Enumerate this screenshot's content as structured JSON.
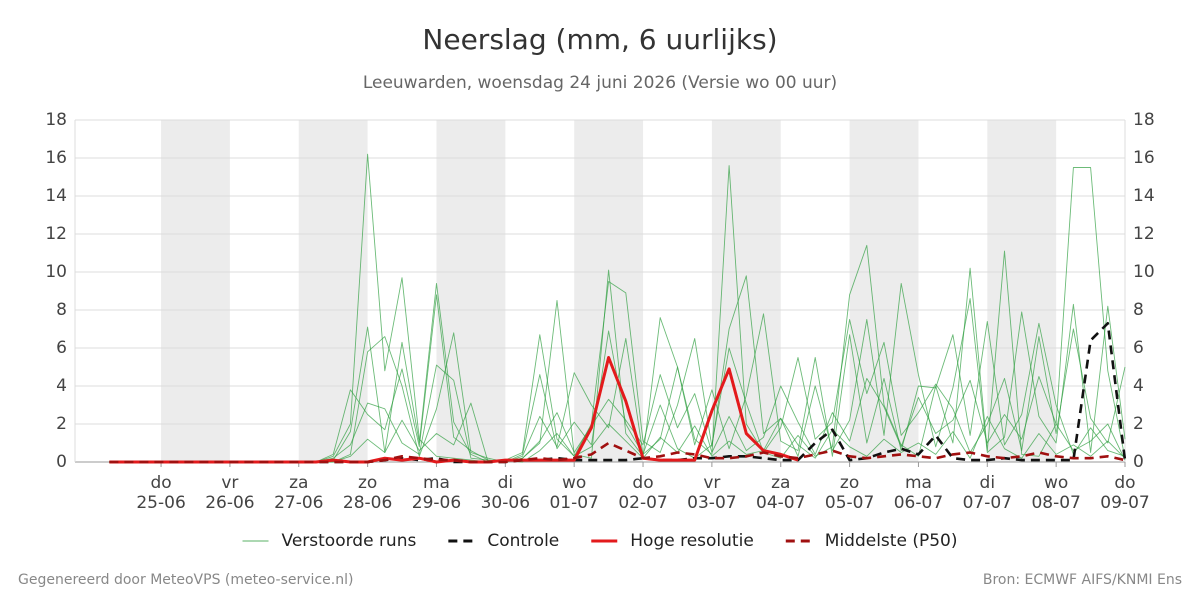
{
  "chart_data": {
    "type": "line",
    "title": "Neerslag (mm, 6 uurlijks)",
    "subtitle": "Leeuwarden, woensdag 24 juni 2026 (Versie wo 00 uur)",
    "credit": "Gegenereerd door MeteoVPS (meteo-service.nl)",
    "source": "Bron: ECMWF AIFS/KNMI Ens",
    "x": [
      "24-06 06:00",
      "24-06 12:00",
      "24-06 18:00",
      "25-06 00:00",
      "25-06 06:00",
      "25-06 12:00",
      "25-06 18:00",
      "26-06 00:00",
      "26-06 06:00",
      "26-06 12:00",
      "26-06 18:00",
      "27-06 00:00",
      "27-06 06:00",
      "27-06 12:00",
      "27-06 18:00",
      "28-06 00:00",
      "28-06 06:00",
      "28-06 12:00",
      "28-06 18:00",
      "29-06 00:00",
      "29-06 06:00",
      "29-06 12:00",
      "29-06 18:00",
      "30-06 00:00",
      "30-06 06:00",
      "30-06 12:00",
      "30-06 18:00",
      "01-07 00:00",
      "01-07 06:00",
      "01-07 12:00",
      "01-07 18:00",
      "02-07 00:00",
      "02-07 06:00",
      "02-07 12:00",
      "02-07 18:00",
      "03-07 00:00",
      "03-07 06:00",
      "03-07 12:00",
      "03-07 18:00",
      "04-07 00:00",
      "04-07 06:00",
      "04-07 12:00",
      "04-07 18:00",
      "05-07 00:00",
      "05-07 06:00",
      "05-07 12:00",
      "05-07 18:00",
      "06-07 00:00",
      "06-07 06:00",
      "06-07 12:00",
      "06-07 18:00",
      "07-07 00:00",
      "07-07 06:00",
      "07-07 12:00",
      "07-07 18:00",
      "08-07 00:00",
      "08-07 06:00",
      "08-07 12:00",
      "08-07 18:00",
      "09-07 00:00"
    ],
    "xlim": [
      "23-06 18:00",
      "09-07 00:00"
    ],
    "xticks": [
      {
        "value": "25-06 00:00",
        "label": [
          "do",
          "25-06"
        ]
      },
      {
        "value": "26-06 00:00",
        "label": [
          "vr",
          "26-06"
        ]
      },
      {
        "value": "27-06 00:00",
        "label": [
          "za",
          "27-06"
        ]
      },
      {
        "value": "28-06 00:00",
        "label": [
          "zo",
          "28-06"
        ]
      },
      {
        "value": "29-06 00:00",
        "label": [
          "ma",
          "29-06"
        ]
      },
      {
        "value": "30-06 00:00",
        "label": [
          "di",
          "30-06"
        ]
      },
      {
        "value": "01-07 00:00",
        "label": [
          "wo",
          "01-07"
        ]
      },
      {
        "value": "02-07 00:00",
        "label": [
          "do",
          "02-07"
        ]
      },
      {
        "value": "03-07 00:00",
        "label": [
          "vr",
          "03-07"
        ]
      },
      {
        "value": "04-07 00:00",
        "label": [
          "za",
          "04-07"
        ]
      },
      {
        "value": "05-07 00:00",
        "label": [
          "zo",
          "05-07"
        ]
      },
      {
        "value": "06-07 00:00",
        "label": [
          "ma",
          "06-07"
        ]
      },
      {
        "value": "07-07 00:00",
        "label": [
          "di",
          "07-07"
        ]
      },
      {
        "value": "08-07 00:00",
        "label": [
          "wo",
          "08-07"
        ]
      },
      {
        "value": "09-07 00:00",
        "label": [
          "do",
          "09-07"
        ]
      }
    ],
    "ylim": [
      0,
      18
    ],
    "yticks": [
      0,
      2,
      4,
      6,
      8,
      10,
      12,
      14,
      16,
      18
    ],
    "grid": true,
    "right_axis": true,
    "legend": "bottom",
    "series": [
      {
        "name": "Verstoorde runs",
        "color": "#2e9e3e",
        "runs": [
          [
            0,
            0,
            0,
            0,
            0,
            0,
            0,
            0,
            0,
            0,
            0,
            0,
            0,
            0.3,
            2.0,
            16.2,
            4.8,
            9.7,
            1.2,
            0.3,
            0.2,
            0.1,
            0,
            0,
            0.2,
            1.0,
            8.5,
            0.4,
            0.2,
            10.1,
            1.5,
            0.3,
            7.6,
            5.0,
            1.2,
            0.4,
            15.6,
            2.0,
            0.5,
            0.2,
            1.4,
            0.3,
            0.8,
            8.8,
            11.4,
            3.0,
            0.9,
            0.3,
            4.0,
            1.0,
            10.2,
            0.6,
            11.1,
            0.4,
            0.3,
            2.0,
            15.5,
            15.5,
            4.8,
            0.2
          ],
          [
            0,
            0,
            0,
            0,
            0,
            0,
            0,
            0,
            0,
            0,
            0,
            0,
            0,
            0.1,
            1.6,
            7.1,
            0.5,
            6.3,
            1.0,
            9.4,
            2.1,
            0.4,
            0,
            0.1,
            0.5,
            6.7,
            1.2,
            0.3,
            2.0,
            9.5,
            8.9,
            1.1,
            0.5,
            3.0,
            6.5,
            0.8,
            7.0,
            9.8,
            1.5,
            2.3,
            0.3,
            4.0,
            0.6,
            2.2,
            7.5,
            1.4,
            9.4,
            4.6,
            0.8,
            3.9,
            8.6,
            0.5,
            1.3,
            7.9,
            2.4,
            1.0,
            8.3,
            0.5,
            8.2,
            1.2
          ],
          [
            0,
            0,
            0,
            0,
            0,
            0,
            0,
            0,
            0,
            0,
            0,
            0,
            0,
            0,
            0.4,
            5.8,
            6.6,
            4.0,
            0.3,
            2.8,
            6.8,
            0.5,
            0.2,
            0,
            0.3,
            2.4,
            0.8,
            4.7,
            3.0,
            1.8,
            6.5,
            0.4,
            1.2,
            5.0,
            0.9,
            3.8,
            0.7,
            3.5,
            7.8,
            1.1,
            0.6,
            5.5,
            0.3,
            6.7,
            1.0,
            4.4,
            0.6,
            4.0,
            3.9,
            6.7,
            1.4,
            7.4,
            0.9,
            2.5,
            7.3,
            3.0,
            0.4,
            1.8,
            0.6,
            0.3
          ],
          [
            0,
            0,
            0,
            0,
            0,
            0,
            0,
            0,
            0,
            0,
            0,
            0,
            0,
            0.2,
            0.9,
            3.1,
            2.8,
            1.0,
            0.4,
            5.1,
            4.3,
            0.2,
            0.1,
            0,
            0.2,
            1.1,
            2.6,
            0.5,
            1.9,
            3.3,
            2.2,
            0.9,
            4.6,
            1.8,
            3.6,
            0.5,
            2.4,
            0.6,
            1.3,
            4.0,
            2.1,
            0.4,
            2.6,
            1.1,
            4.4,
            2.9,
            0.8,
            3.4,
            1.5,
            2.2,
            4.3,
            1.0,
            2.5,
            1.2,
            4.5,
            2.0,
            0.6,
            1.1,
            2.0,
            0.1
          ],
          [
            0,
            0,
            0,
            0,
            0,
            0,
            0,
            0,
            0,
            0,
            0,
            0,
            0,
            0,
            0.3,
            1.2,
            0.5,
            2.2,
            0.6,
            1.5,
            0.9,
            3.1,
            0,
            0.1,
            0,
            0.6,
            1.5,
            0.3,
            0.8,
            2.0,
            1.1,
            0.2,
            1.3,
            0.5,
            1.9,
            0.3,
            1.1,
            0.4,
            0.6,
            2.3,
            0.9,
            0.2,
            1.7,
            0.8,
            0.3,
            1.2,
            0.5,
            1.0,
            0.4,
            1.6,
            0.2,
            2.4,
            0.7,
            0.2,
            1.5,
            0.4,
            0.9,
            0.3,
            1.1,
            0.2
          ],
          [
            0,
            0,
            0,
            0,
            0,
            0,
            0,
            0,
            0,
            0,
            0,
            0,
            0,
            0.4,
            3.8,
            2.5,
            1.7,
            4.9,
            0.8,
            8.8,
            1.3,
            0.6,
            0.1,
            0,
            0.4,
            4.6,
            0.7,
            2.1,
            0.9,
            6.9,
            2.0,
            0.4,
            3.0,
            0.7,
            0.2,
            0.9,
            6.0,
            3.1,
            0.5,
            1.8,
            5.5,
            1.2,
            2.1,
            7.5,
            3.6,
            6.3,
            1.4,
            2.6,
            4.1,
            2.8,
            0.5,
            2.0,
            4.4,
            0.6,
            6.6,
            1.5,
            7.0,
            2.3,
            1.0,
            5.0
          ]
        ]
      },
      {
        "name": "Controle",
        "color": "#111111",
        "dash": true,
        "values": [
          0,
          0,
          0,
          0,
          0,
          0,
          0,
          0,
          0,
          0,
          0,
          0,
          0,
          0,
          0,
          0,
          0.1,
          0.2,
          0.1,
          0.2,
          0,
          0,
          0,
          0,
          0.1,
          0.1,
          0.2,
          0.1,
          0.1,
          0.1,
          0.1,
          0.2,
          0.1,
          0.1,
          0.2,
          0.2,
          0.3,
          0.3,
          0.2,
          0.1,
          0.1,
          1.0,
          1.7,
          0.1,
          0.2,
          0.5,
          0.7,
          0.4,
          1.4,
          0.2,
          0.1,
          0.1,
          0.2,
          0.1,
          0.1,
          0.1,
          0.1,
          6.4,
          7.3,
          0.1
        ]
      },
      {
        "name": "Hoge resolutie",
        "color": "#e31a1c",
        "values": [
          0,
          0,
          0,
          0,
          0,
          0,
          0,
          0,
          0,
          0,
          0,
          0,
          0,
          0.1,
          0,
          0,
          0.2,
          0.1,
          0.2,
          0,
          0.1,
          0,
          0,
          0.1,
          0.1,
          0.1,
          0.1,
          0.1,
          1.8,
          5.5,
          3.2,
          0.2,
          0.1,
          0.1,
          0.1,
          2.7,
          4.9,
          1.5,
          0.6,
          0.4,
          0.1,
          null,
          null,
          null,
          null,
          null,
          null,
          null,
          null,
          null,
          null,
          null,
          null,
          null,
          null,
          null,
          null,
          null,
          null,
          null
        ]
      },
      {
        "name": "Middelste (P50)",
        "color": "#a01010",
        "dash": true,
        "values": [
          0,
          0,
          0,
          0,
          0,
          0,
          0,
          0,
          0,
          0,
          0,
          0,
          0,
          0,
          0,
          0,
          0.1,
          0.3,
          0.2,
          0.1,
          0.1,
          0,
          0,
          0,
          0.1,
          0.2,
          0.1,
          0.2,
          0.4,
          1.0,
          0.6,
          0.2,
          0.3,
          0.5,
          0.4,
          0.2,
          0.2,
          0.3,
          0.5,
          0.3,
          0.2,
          0.4,
          0.6,
          0.3,
          0.2,
          0.3,
          0.4,
          0.3,
          0.2,
          0.4,
          0.5,
          0.3,
          0.2,
          0.3,
          0.5,
          0.3,
          0.2,
          0.2,
          0.3,
          0.1
        ]
      }
    ]
  }
}
